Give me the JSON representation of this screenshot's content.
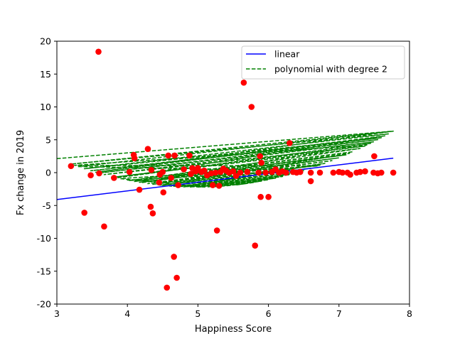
{
  "chart_data": {
    "type": "scatter",
    "title": "",
    "xlabel": "Happiness Score",
    "ylabel": "Fx change in 2019",
    "xlim": [
      3,
      8
    ],
    "ylim": [
      -20,
      20
    ],
    "xticks": [
      3,
      4,
      5,
      6,
      7,
      8
    ],
    "yticks": [
      -20,
      -15,
      -10,
      -5,
      0,
      5,
      10,
      15,
      20
    ],
    "grid": false,
    "legend_position": "top-right",
    "scatter": {
      "color": "#ff0000",
      "points": [
        [
          3.2,
          1.0
        ],
        [
          3.39,
          -6.1
        ],
        [
          3.48,
          -0.4
        ],
        [
          3.59,
          18.4
        ],
        [
          3.6,
          -0.1
        ],
        [
          3.67,
          -8.2
        ],
        [
          3.81,
          -0.8
        ],
        [
          4.03,
          0.1
        ],
        [
          4.09,
          2.7
        ],
        [
          4.1,
          2.2
        ],
        [
          4.17,
          -2.6
        ],
        [
          4.29,
          3.6
        ],
        [
          4.33,
          -5.2
        ],
        [
          4.34,
          0.4
        ],
        [
          4.36,
          -6.2
        ],
        [
          4.45,
          -1.5
        ],
        [
          4.46,
          -0.3
        ],
        [
          4.5,
          0.1
        ],
        [
          4.51,
          -3.0
        ],
        [
          4.56,
          -17.5
        ],
        [
          4.58,
          2.6
        ],
        [
          4.62,
          -0.8
        ],
        [
          4.66,
          -12.8
        ],
        [
          4.67,
          2.6
        ],
        [
          4.7,
          -16.0
        ],
        [
          4.72,
          -1.9
        ],
        [
          4.8,
          0.5
        ],
        [
          4.88,
          2.6
        ],
        [
          4.9,
          -0.2
        ],
        [
          4.92,
          0.7
        ],
        [
          4.97,
          0.2
        ],
        [
          5.0,
          0.7
        ],
        [
          5.05,
          0.1
        ],
        [
          5.09,
          0.3
        ],
        [
          5.13,
          -0.4
        ],
        [
          5.19,
          -0.1
        ],
        [
          5.21,
          -1.9
        ],
        [
          5.25,
          0.0
        ],
        [
          5.27,
          -8.8
        ],
        [
          5.3,
          -2.0
        ],
        [
          5.32,
          0.1
        ],
        [
          5.36,
          0.6
        ],
        [
          5.4,
          0.3
        ],
        [
          5.44,
          0.0
        ],
        [
          5.5,
          0.2
        ],
        [
          5.54,
          -0.5
        ],
        [
          5.6,
          0.0
        ],
        [
          5.65,
          13.7
        ],
        [
          5.7,
          0.1
        ],
        [
          5.76,
          10.0
        ],
        [
          5.81,
          -11.1
        ],
        [
          5.86,
          0.0
        ],
        [
          5.88,
          2.5
        ],
        [
          5.89,
          -3.7
        ],
        [
          5.9,
          1.5
        ],
        [
          5.96,
          0.0
        ],
        [
          6.0,
          -3.7
        ],
        [
          6.05,
          0.1
        ],
        [
          6.1,
          0.5
        ],
        [
          6.15,
          0.0
        ],
        [
          6.2,
          0.2
        ],
        [
          6.25,
          0.0
        ],
        [
          6.3,
          4.5
        ],
        [
          6.35,
          0.1
        ],
        [
          6.4,
          0.0
        ],
        [
          6.45,
          0.1
        ],
        [
          6.6,
          -1.3
        ],
        [
          6.6,
          0.0
        ],
        [
          6.73,
          0.0
        ],
        [
          6.92,
          0.0
        ],
        [
          7.0,
          0.1
        ],
        [
          7.05,
          0.0
        ],
        [
          7.12,
          0.0
        ],
        [
          7.16,
          -0.3
        ],
        [
          7.25,
          0.0
        ],
        [
          7.3,
          0.1
        ],
        [
          7.37,
          0.2
        ],
        [
          7.49,
          0.0
        ],
        [
          7.5,
          2.5
        ],
        [
          7.55,
          -0.1
        ],
        [
          7.6,
          0.0
        ],
        [
          7.77,
          0.0
        ]
      ]
    },
    "series": [
      {
        "name": "linear",
        "color": "#0000ff",
        "style": "solid",
        "x": [
          3.0,
          7.77
        ],
        "y": [
          -4.1,
          2.2
        ]
      },
      {
        "name": "polynomial with degree 2",
        "color": "#008000",
        "style": "dashed",
        "coefficients": [
          1.1,
          -10.97,
          25.14
        ],
        "x_order": [
          3.0,
          7.77,
          3.2,
          7.7,
          3.39,
          7.6,
          3.48,
          7.55,
          3.59,
          7.49,
          3.67,
          7.37,
          3.81,
          7.3,
          4.03,
          7.2,
          4.1,
          7.1,
          4.17,
          7.0,
          4.29,
          6.9,
          4.36,
          6.73,
          4.46,
          6.6,
          4.58,
          6.45,
          4.7,
          6.3,
          4.88,
          6.2,
          5.0,
          6.1,
          5.13,
          6.0,
          5.25,
          5.9,
          5.4,
          5.8,
          5.55,
          5.7,
          5.3,
          6.35,
          4.8,
          6.8,
          4.5,
          7.15,
          4.2,
          7.45,
          3.85,
          7.65,
          3.55,
          7.77,
          3.3,
          6.5,
          4.0,
          5.6,
          4.6,
          5.1,
          3.9,
          6.7,
          3.25,
          7.4
        ]
      }
    ]
  }
}
